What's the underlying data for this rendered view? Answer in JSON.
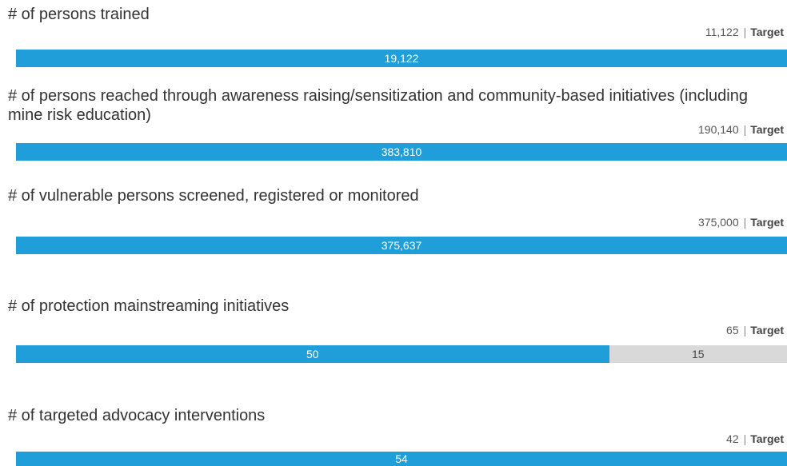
{
  "indicators": [
    {
      "title": "# of persons trained",
      "target": {
        "value": 11122,
        "label": "11,122"
      },
      "target_caption": "Target",
      "achieved": {
        "value": 19122,
        "label": "19,122"
      }
    },
    {
      "title": "# of persons reached through awareness raising/sensitization and community-based initiatives (including mine risk education)",
      "target": {
        "value": 190140,
        "label": "190,140"
      },
      "target_caption": "Target",
      "achieved": {
        "value": 383810,
        "label": "383,810"
      }
    },
    {
      "title": "# of vulnerable persons screened, registered or monitored",
      "target": {
        "value": 375000,
        "label": "375,000"
      },
      "target_caption": "Target",
      "achieved": {
        "value": 375637,
        "label": "375,637"
      }
    },
    {
      "title": "# of protection mainstreaming initiatives",
      "target": {
        "value": 65,
        "label": "65"
      },
      "target_caption": "Target",
      "achieved": {
        "value": 50,
        "label": "50"
      },
      "remaining": {
        "value": 15,
        "label": "15"
      }
    },
    {
      "title": "# of targeted advocacy interventions",
      "target": {
        "value": 42,
        "label": "42"
      },
      "target_caption": "Target",
      "achieved": {
        "value": 54,
        "label": "54"
      }
    }
  ]
}
